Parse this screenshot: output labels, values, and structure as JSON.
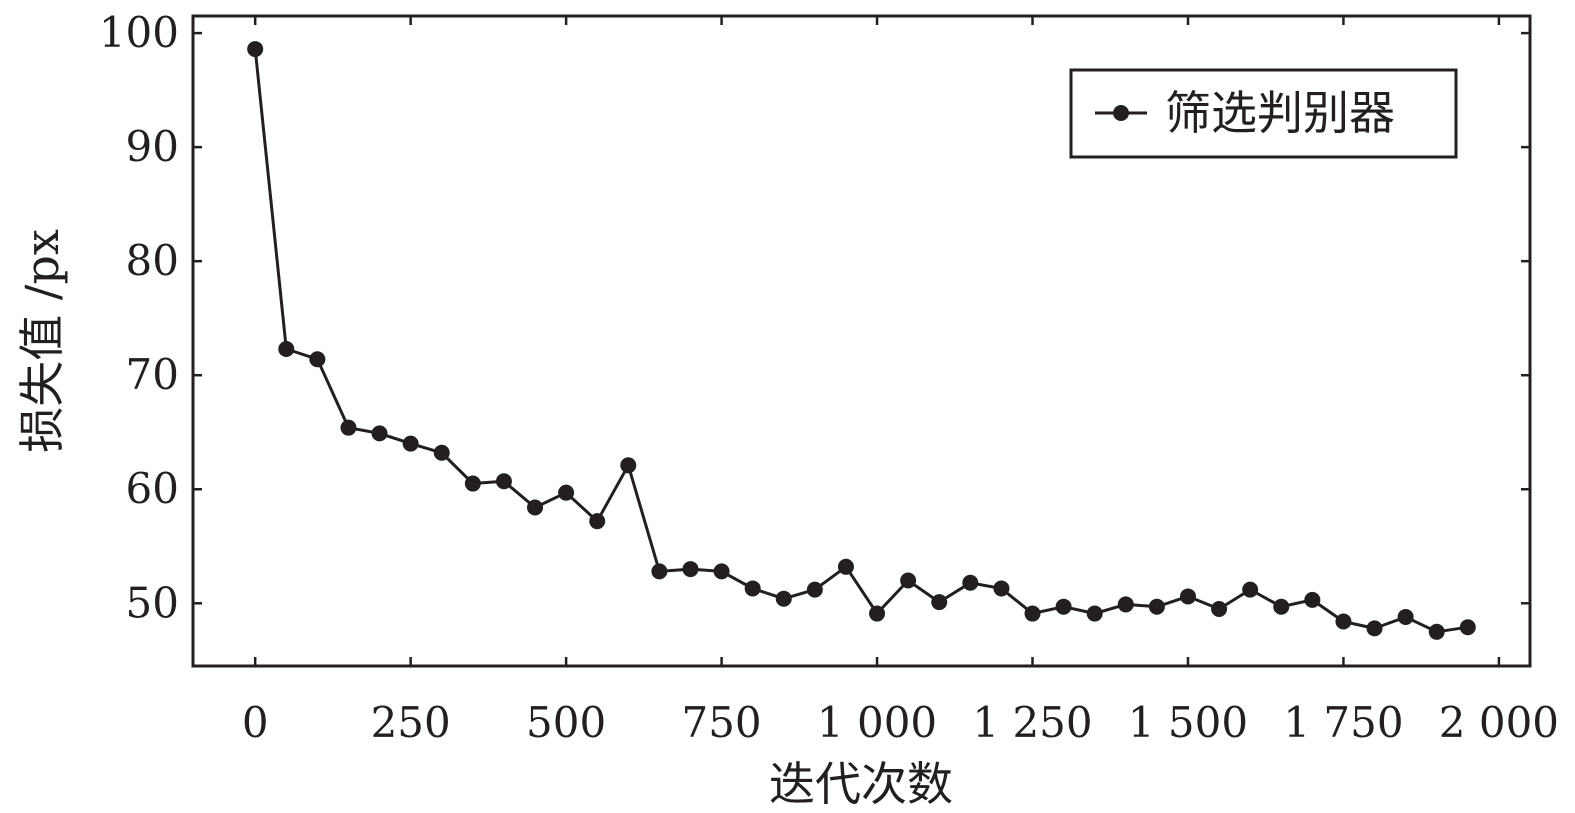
{
  "chart_data": {
    "type": "line",
    "xlabel": "迭代次数",
    "ylabel": "损失值 /px",
    "xlim": [
      -100,
      2050
    ],
    "ylim": [
      44.5,
      101.5
    ],
    "x_ticks": [
      0,
      250,
      500,
      750,
      1000,
      1250,
      1500,
      1750,
      2000
    ],
    "x_tick_labels": [
      "0",
      "250",
      "500",
      "750",
      "1 000",
      "1 250",
      "1 500",
      "1 750",
      "2 000"
    ],
    "y_ticks": [
      50,
      60,
      70,
      80,
      90,
      100
    ],
    "y_tick_labels": [
      "50",
      "60",
      "70",
      "80",
      "90",
      "100"
    ],
    "grid": false,
    "legend_position": "top-right",
    "series": [
      {
        "name": "筛选判别器",
        "color": "#231f20",
        "marker": "circle",
        "x": [
          0,
          50,
          100,
          150,
          200,
          250,
          300,
          350,
          400,
          450,
          500,
          550,
          600,
          650,
          700,
          750,
          800,
          850,
          900,
          950,
          1000,
          1050,
          1100,
          1150,
          1200,
          1250,
          1300,
          1350,
          1400,
          1450,
          1500,
          1550,
          1600,
          1650,
          1700,
          1750,
          1800,
          1850,
          1900,
          1950
        ],
        "values": [
          98.6,
          72.3,
          71.4,
          65.4,
          64.9,
          64.0,
          63.2,
          60.5,
          60.7,
          58.4,
          59.7,
          57.2,
          62.1,
          52.8,
          53.0,
          52.8,
          51.3,
          50.4,
          51.2,
          53.2,
          49.1,
          52.0,
          50.1,
          51.8,
          51.3,
          49.1,
          49.7,
          49.1,
          49.9,
          49.7,
          50.6,
          49.5,
          51.2,
          49.7,
          50.3,
          48.4,
          47.8,
          48.8,
          47.5,
          47.9
        ]
      }
    ]
  }
}
